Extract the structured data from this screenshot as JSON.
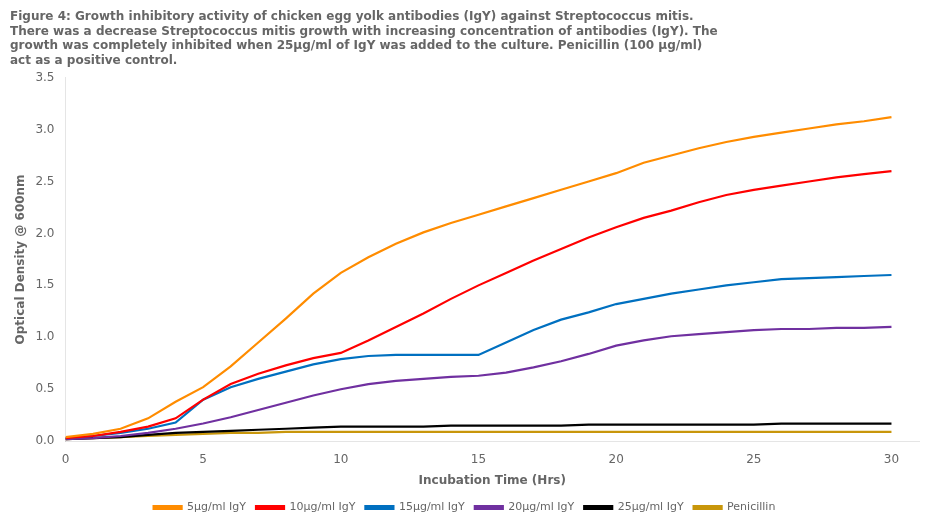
{
  "chart_data": {
    "type": "line",
    "title": [
      "Figure 4: Growth inhibitory activity of chicken egg yolk antibodies (IgY) against Streptococcus mitis.",
      "There was a decrease Streptococcus mitis growth with increasing concentration of antibodies (IgY). The",
      "growth was completely inhibited when 25μg/ml of IgY was added to the culture. Penicillin (100 μg/ml)",
      "act as a positive control."
    ],
    "x_label": "Incubation Time (Hrs)",
    "y_label": "Optical Density @ 600nm",
    "x": [
      0,
      1,
      2,
      3,
      4,
      5,
      6,
      7,
      8,
      9,
      10,
      11,
      12,
      13,
      14,
      15,
      16,
      17,
      18,
      19,
      20,
      21,
      22,
      23,
      24,
      25,
      26,
      27,
      28,
      29,
      30
    ],
    "series": [
      {
        "name": "5μg/ml IgY",
        "color": "#FF8C00",
        "values": [
          0.04,
          0.07,
          0.12,
          0.22,
          0.38,
          0.52,
          0.72,
          0.95,
          1.18,
          1.42,
          1.62,
          1.77,
          1.9,
          2.01,
          2.1,
          2.18,
          2.26,
          2.34,
          2.42,
          2.5,
          2.58,
          2.68,
          2.75,
          2.82,
          2.88,
          2.93,
          2.97,
          3.01,
          3.05,
          3.08,
          3.12
        ]
      },
      {
        "name": "10μg/ml IgY",
        "color": "#FF0000",
        "values": [
          0.03,
          0.05,
          0.09,
          0.14,
          0.22,
          0.4,
          0.55,
          0.65,
          0.73,
          0.8,
          0.85,
          0.97,
          1.1,
          1.23,
          1.37,
          1.5,
          1.62,
          1.74,
          1.85,
          1.96,
          2.06,
          2.15,
          2.22,
          2.3,
          2.37,
          2.42,
          2.46,
          2.5,
          2.54,
          2.57,
          2.6
        ]
      },
      {
        "name": "15μg/ml IgY",
        "color": "#0070C0",
        "values": [
          0.03,
          0.05,
          0.08,
          0.12,
          0.18,
          0.4,
          0.52,
          0.6,
          0.67,
          0.74,
          0.79,
          0.82,
          0.83,
          0.83,
          0.83,
          0.83,
          0.95,
          1.07,
          1.17,
          1.24,
          1.32,
          1.37,
          1.42,
          1.46,
          1.5,
          1.53,
          1.56,
          1.57,
          1.58,
          1.59,
          1.6
        ]
      },
      {
        "name": "20μg/ml IgY",
        "color": "#7030A0",
        "values": [
          0.02,
          0.03,
          0.05,
          0.08,
          0.12,
          0.17,
          0.23,
          0.3,
          0.37,
          0.44,
          0.5,
          0.55,
          0.58,
          0.6,
          0.62,
          0.63,
          0.66,
          0.71,
          0.77,
          0.84,
          0.92,
          0.97,
          1.01,
          1.03,
          1.05,
          1.07,
          1.08,
          1.08,
          1.09,
          1.09,
          1.1
        ]
      },
      {
        "name": "25μg/ml IgY",
        "color": "#000000",
        "values": [
          0.02,
          0.03,
          0.04,
          0.06,
          0.08,
          0.09,
          0.1,
          0.11,
          0.12,
          0.13,
          0.14,
          0.14,
          0.14,
          0.14,
          0.15,
          0.15,
          0.15,
          0.15,
          0.15,
          0.16,
          0.16,
          0.16,
          0.16,
          0.16,
          0.16,
          0.16,
          0.17,
          0.17,
          0.17,
          0.17,
          0.17
        ]
      },
      {
        "name": "Penicillin",
        "color": "#C8960A",
        "values": [
          0.02,
          0.03,
          0.04,
          0.05,
          0.06,
          0.07,
          0.08,
          0.08,
          0.09,
          0.09,
          0.09,
          0.09,
          0.09,
          0.09,
          0.09,
          0.09,
          0.09,
          0.09,
          0.09,
          0.09,
          0.09,
          0.09,
          0.09,
          0.09,
          0.09,
          0.09,
          0.09,
          0.09,
          0.09,
          0.09,
          0.09
        ]
      }
    ],
    "xlim": [
      0,
      31
    ],
    "xticks": [
      0,
      5,
      10,
      15,
      20,
      25,
      30
    ],
    "ylim": [
      0,
      3.5
    ],
    "yticks": [
      {
        "value": 0,
        "label": "0.0"
      },
      0.5,
      {
        "value": 1.0,
        "label": "1.0"
      },
      1.5,
      {
        "value": 2.0,
        "label": "2.0"
      },
      2.5,
      {
        "value": 3.0,
        "label": "3.0"
      },
      3.5
    ],
    "grid": false,
    "legend": "bottom"
  }
}
